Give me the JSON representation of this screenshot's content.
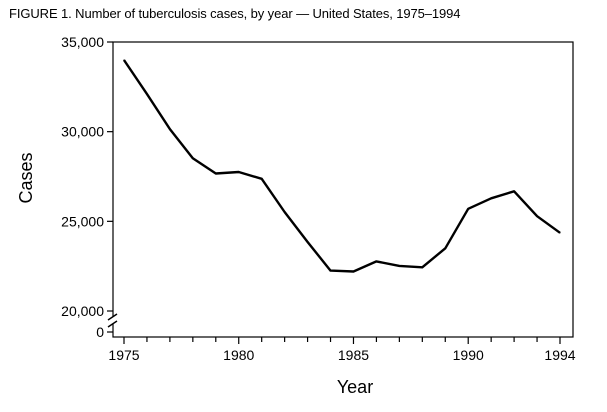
{
  "figure_title": "FIGURE 1. Number of tuberculosis cases, by year — United States, 1975–1994",
  "chart_data": {
    "type": "line",
    "title": "FIGURE 1. Number of tuberculosis cases, by year — United States, 1975–1994",
    "xlabel": "Year",
    "ylabel": "Cases",
    "xlim": [
      1975,
      1994
    ],
    "ylim": [
      20000,
      35000
    ],
    "y_axis_break": true,
    "y_axis_zero_label": "0",
    "grid": false,
    "line_color": "#000000",
    "x_ticks": [
      1975,
      1976,
      1977,
      1978,
      1979,
      1980,
      1981,
      1982,
      1983,
      1984,
      1985,
      1986,
      1987,
      1988,
      1989,
      1990,
      1991,
      1992,
      1993,
      1994
    ],
    "x_tick_labels": [
      {
        "value": 1975,
        "label": "1975"
      },
      {
        "value": 1980,
        "label": "1980"
      },
      {
        "value": 1985,
        "label": "1985"
      },
      {
        "value": 1990,
        "label": "1990"
      },
      {
        "value": 1994,
        "label": "1994"
      }
    ],
    "y_ticks": [
      {
        "value": 20000,
        "label": "20,000"
      },
      {
        "value": 25000,
        "label": "25,000"
      },
      {
        "value": 30000,
        "label": "30,000"
      },
      {
        "value": 35000,
        "label": "35,000"
      }
    ],
    "series": [
      {
        "name": "Tuberculosis cases",
        "x": [
          1975,
          1976,
          1977,
          1978,
          1979,
          1980,
          1981,
          1982,
          1983,
          1984,
          1985,
          1986,
          1987,
          1988,
          1989,
          1990,
          1991,
          1992,
          1993,
          1994
        ],
        "values": [
          33989,
          32105,
          30145,
          28521,
          27669,
          27749,
          27373,
          25520,
          23846,
          22255,
          22201,
          22768,
          22517,
          22436,
          23495,
          25701,
          26283,
          26673,
          25287,
          24361
        ]
      }
    ]
  }
}
